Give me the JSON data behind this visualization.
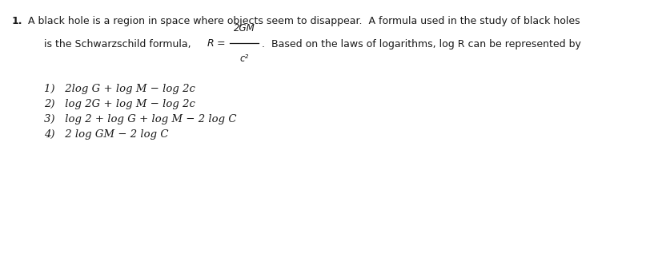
{
  "background_color": "#ffffff",
  "fig_width": 8.28,
  "fig_height": 3.17,
  "dpi": 100,
  "text_color": "#1a1a1a",
  "font_size_body": 9.0,
  "font_size_opts": 9.5,
  "font_size_num": 9.0,
  "line1_num": "1.",
  "line1_text": "A black hole is a region in space where objects seem to disappear.  A formula used in the study of black holes",
  "line2_prefix": "is the Schwarzschild formula,",
  "line2_suffix": ".  Based on the laws of logarithms, log R can be represented by",
  "formula_num": "2GM",
  "formula_den": "c²",
  "opt1": "1)   2log G + log M − log 2c",
  "opt2": "2)   log 2G + log M − log 2c",
  "opt3": "3)   log 2 + log G + log M − 2 log C",
  "opt4": "4)   2 log GM − 2 log C"
}
